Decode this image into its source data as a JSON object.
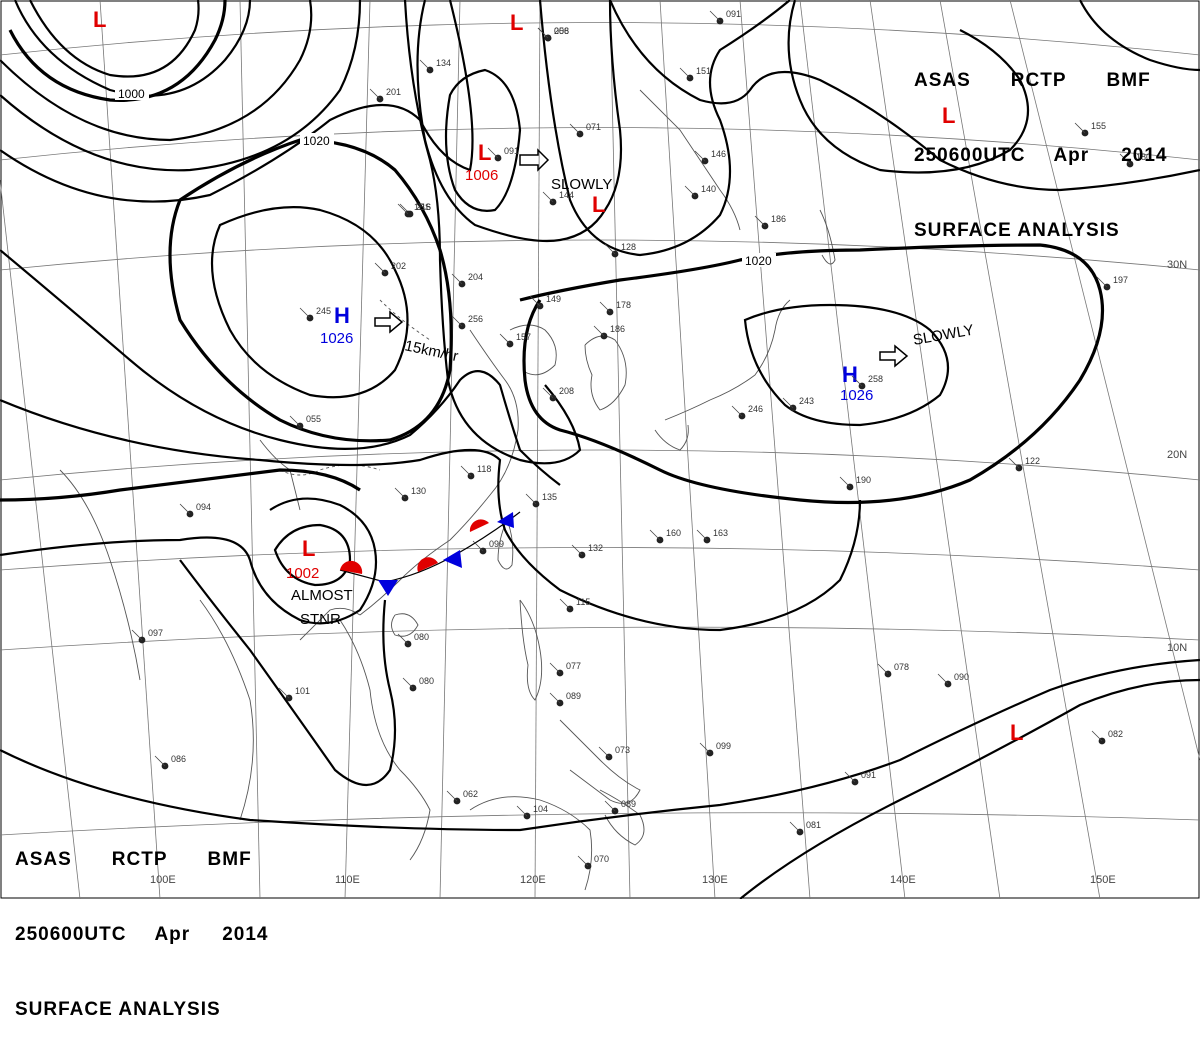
{
  "header_top": {
    "line1": [
      "ASAS",
      "RCTP",
      "BMF"
    ],
    "line2": [
      "250600UTC",
      "Apr",
      "2014"
    ],
    "line3": "SURFACE ANALYSIS"
  },
  "header_bottom": {
    "line1": [
      "ASAS",
      "RCTP",
      "BMF"
    ],
    "line2": [
      "250600UTC",
      "Apr",
      "2014"
    ],
    "line3": "SURFACE ANALYSIS"
  },
  "lat_labels": [
    "30N",
    "20N",
    "10N"
  ],
  "lon_labels": [
    "100E",
    "110E",
    "120E",
    "130E",
    "140E",
    "150E"
  ],
  "isobar_labels": [
    "1000",
    "1020",
    "1020"
  ],
  "pressure_systems": [
    {
      "type": "L",
      "value": "1006"
    },
    {
      "type": "L",
      "value": "1002"
    },
    {
      "type": "H",
      "value": "1026"
    },
    {
      "type": "H",
      "value": "1026"
    },
    {
      "type": "L",
      "value": ""
    },
    {
      "type": "L",
      "value": ""
    },
    {
      "type": "L",
      "value": ""
    },
    {
      "type": "L",
      "value": ""
    },
    {
      "type": "L",
      "value": ""
    }
  ],
  "annotations": {
    "slowly_1": "SLOWLY",
    "slowly_2": "SLOWLY",
    "speed": "15km/hr",
    "almost": "ALMOST",
    "stnr": "STNR"
  },
  "colors": {
    "low": "#e00000",
    "high": "#0000dd",
    "warm_front": "#e00000",
    "cold_front": "#0000dd",
    "isobar": "#000000",
    "coast": "#555555",
    "grid": "#777777"
  },
  "station_values": [
    "058",
    "091",
    "151",
    "071",
    "146",
    "140",
    "186",
    "128",
    "149",
    "178",
    "157",
    "204",
    "202",
    "216",
    "245",
    "256",
    "186",
    "208",
    "246",
    "243",
    "258",
    "197",
    "180",
    "118",
    "130",
    "135",
    "099",
    "132",
    "160",
    "163",
    "122",
    "190",
    "080",
    "115",
    "097",
    "080",
    "101",
    "077",
    "089",
    "073",
    "099",
    "091",
    "078",
    "090",
    "082",
    "062",
    "104",
    "089",
    "081",
    "070",
    "086",
    "094",
    "055",
    "201",
    "134",
    "091",
    "144",
    "155",
    "1BS",
    "206"
  ]
}
